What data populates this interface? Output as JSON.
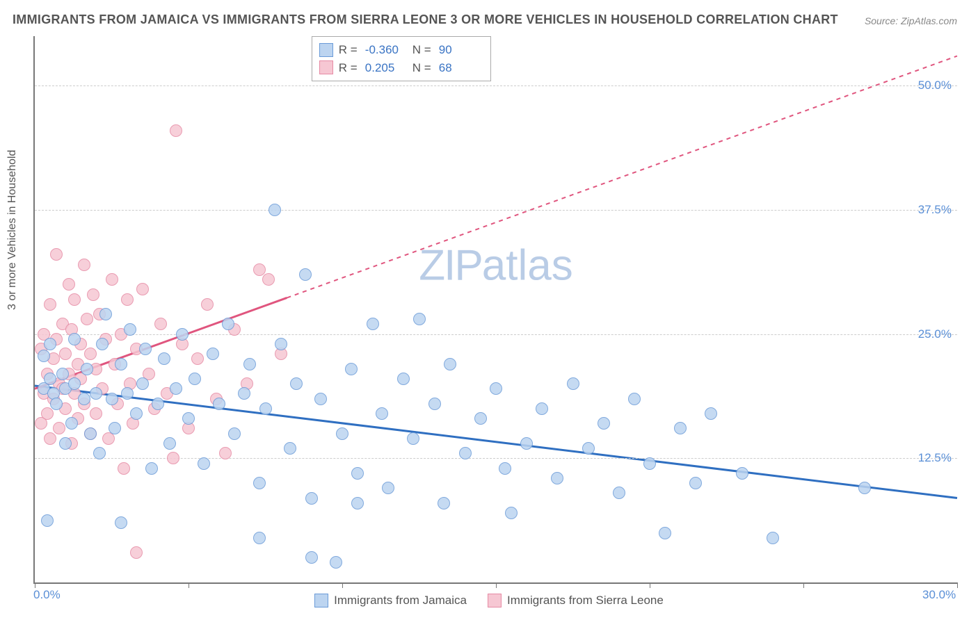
{
  "title": "IMMIGRANTS FROM JAMAICA VS IMMIGRANTS FROM SIERRA LEONE 3 OR MORE VEHICLES IN HOUSEHOLD CORRELATION CHART",
  "source_label": "Source:",
  "source_value": "ZipAtlas.com",
  "y_axis_label": "3 or more Vehicles in Household",
  "watermark_part1": "ZIP",
  "watermark_part2": "atlas",
  "watermark_color": "#b9cce6",
  "plot": {
    "xmin": 0.0,
    "xmax": 30.0,
    "ymin": 0.0,
    "ymax": 55.0,
    "x_tick_step": 5.0,
    "y_gridlines": [
      12.5,
      25.0,
      37.5,
      50.0
    ],
    "y_tick_labels": [
      "12.5%",
      "25.0%",
      "37.5%",
      "50.0%"
    ],
    "x_min_label": "0.0%",
    "x_max_label": "30.0%",
    "grid_color": "#cccccc",
    "axis_color": "#777777",
    "background": "#ffffff"
  },
  "series": {
    "jamaica": {
      "label": "Immigrants from Jamaica",
      "point_fill": "#bcd4f0",
      "point_stroke": "#6a9bd8",
      "point_radius": 9,
      "trend_color": "#2f6fc1",
      "trend_width": 3,
      "trend_start": {
        "x": 0.0,
        "y": 19.8
      },
      "trend_end": {
        "x": 30.0,
        "y": 8.5
      },
      "R": "-0.360",
      "N": "90",
      "points": [
        [
          0.3,
          22.8
        ],
        [
          0.3,
          19.5
        ],
        [
          0.4,
          6.2
        ],
        [
          0.5,
          24.0
        ],
        [
          0.5,
          20.5
        ],
        [
          0.6,
          19.0
        ],
        [
          0.7,
          18.0
        ],
        [
          0.9,
          21.0
        ],
        [
          1.0,
          14.0
        ],
        [
          1.0,
          19.5
        ],
        [
          1.2,
          16.0
        ],
        [
          1.3,
          24.5
        ],
        [
          1.3,
          20.0
        ],
        [
          2.8,
          6.0
        ],
        [
          1.6,
          18.5
        ],
        [
          1.7,
          21.5
        ],
        [
          1.8,
          15.0
        ],
        [
          2.0,
          19.0
        ],
        [
          2.1,
          13.0
        ],
        [
          2.2,
          24.0
        ],
        [
          2.3,
          27.0
        ],
        [
          2.5,
          18.5
        ],
        [
          2.6,
          15.5
        ],
        [
          2.8,
          22.0
        ],
        [
          3.0,
          19.0
        ],
        [
          3.1,
          25.5
        ],
        [
          3.3,
          17.0
        ],
        [
          3.5,
          20.0
        ],
        [
          3.6,
          23.5
        ],
        [
          3.8,
          11.5
        ],
        [
          4.0,
          18.0
        ],
        [
          4.2,
          22.5
        ],
        [
          4.4,
          14.0
        ],
        [
          4.6,
          19.5
        ],
        [
          4.8,
          25.0
        ],
        [
          5.0,
          16.5
        ],
        [
          5.2,
          20.5
        ],
        [
          5.5,
          12.0
        ],
        [
          5.8,
          23.0
        ],
        [
          6.0,
          18.0
        ],
        [
          6.3,
          26.0
        ],
        [
          6.5,
          15.0
        ],
        [
          6.8,
          19.0
        ],
        [
          7.0,
          22.0
        ],
        [
          7.3,
          10.0
        ],
        [
          7.3,
          4.5
        ],
        [
          7.5,
          17.5
        ],
        [
          7.8,
          37.5
        ],
        [
          8.0,
          24.0
        ],
        [
          8.3,
          13.5
        ],
        [
          8.5,
          20.0
        ],
        [
          8.8,
          31.0
        ],
        [
          9.0,
          8.5
        ],
        [
          9.3,
          18.5
        ],
        [
          9.0,
          2.5
        ],
        [
          9.8,
          2.0
        ],
        [
          10.5,
          8.0
        ],
        [
          10.0,
          15.0
        ],
        [
          10.3,
          21.5
        ],
        [
          10.5,
          11.0
        ],
        [
          11.0,
          26.0
        ],
        [
          11.3,
          17.0
        ],
        [
          11.5,
          9.5
        ],
        [
          12.0,
          20.5
        ],
        [
          12.3,
          14.5
        ],
        [
          12.5,
          26.5
        ],
        [
          13.0,
          18.0
        ],
        [
          13.3,
          8.0
        ],
        [
          13.5,
          22.0
        ],
        [
          14.0,
          13.0
        ],
        [
          14.5,
          16.5
        ],
        [
          15.0,
          19.5
        ],
        [
          15.3,
          11.5
        ],
        [
          15.5,
          7.0
        ],
        [
          16.0,
          14.0
        ],
        [
          16.5,
          17.5
        ],
        [
          17.0,
          10.5
        ],
        [
          17.5,
          20.0
        ],
        [
          18.0,
          13.5
        ],
        [
          18.5,
          16.0
        ],
        [
          19.0,
          9.0
        ],
        [
          19.5,
          18.5
        ],
        [
          20.0,
          12.0
        ],
        [
          20.5,
          5.0
        ],
        [
          21.0,
          15.5
        ],
        [
          21.5,
          10.0
        ],
        [
          22.0,
          17.0
        ],
        [
          23.0,
          11.0
        ],
        [
          24.0,
          4.5
        ],
        [
          27.0,
          9.5
        ]
      ]
    },
    "sierra_leone": {
      "label": "Immigrants from Sierra Leone",
      "point_fill": "#f6c7d3",
      "point_stroke": "#e68aa4",
      "point_radius": 9,
      "trend_color": "#e0557e",
      "trend_width": 3,
      "trend_solid_end_x": 8.2,
      "trend_start": {
        "x": 0.0,
        "y": 19.5
      },
      "trend_end": {
        "x": 30.0,
        "y": 53.0
      },
      "R": "0.205",
      "N": "68",
      "points": [
        [
          0.2,
          23.5
        ],
        [
          0.2,
          16.0
        ],
        [
          0.3,
          25.0
        ],
        [
          0.3,
          19.0
        ],
        [
          0.4,
          21.0
        ],
        [
          0.4,
          17.0
        ],
        [
          0.5,
          28.0
        ],
        [
          0.5,
          14.5
        ],
        [
          0.6,
          22.5
        ],
        [
          0.6,
          18.5
        ],
        [
          0.7,
          24.5
        ],
        [
          0.7,
          33.0
        ],
        [
          0.8,
          20.0
        ],
        [
          0.8,
          15.5
        ],
        [
          0.9,
          26.0
        ],
        [
          0.9,
          19.5
        ],
        [
          1.0,
          23.0
        ],
        [
          1.0,
          17.5
        ],
        [
          1.1,
          30.0
        ],
        [
          1.1,
          21.0
        ],
        [
          1.2,
          25.5
        ],
        [
          1.2,
          14.0
        ],
        [
          1.3,
          28.5
        ],
        [
          1.3,
          19.0
        ],
        [
          1.4,
          22.0
        ],
        [
          1.4,
          16.5
        ],
        [
          1.5,
          24.0
        ],
        [
          1.5,
          20.5
        ],
        [
          1.6,
          32.0
        ],
        [
          1.6,
          18.0
        ],
        [
          1.7,
          26.5
        ],
        [
          1.8,
          23.0
        ],
        [
          1.8,
          15.0
        ],
        [
          1.9,
          29.0
        ],
        [
          2.0,
          21.5
        ],
        [
          2.0,
          17.0
        ],
        [
          2.1,
          27.0
        ],
        [
          2.2,
          19.5
        ],
        [
          2.3,
          24.5
        ],
        [
          2.4,
          14.5
        ],
        [
          2.5,
          30.5
        ],
        [
          2.6,
          22.0
        ],
        [
          2.7,
          18.0
        ],
        [
          2.8,
          25.0
        ],
        [
          2.9,
          11.5
        ],
        [
          3.0,
          28.5
        ],
        [
          3.1,
          20.0
        ],
        [
          3.2,
          16.0
        ],
        [
          3.3,
          23.5
        ],
        [
          3.5,
          29.5
        ],
        [
          3.3,
          3.0
        ],
        [
          3.7,
          21.0
        ],
        [
          3.9,
          17.5
        ],
        [
          4.1,
          26.0
        ],
        [
          4.3,
          19.0
        ],
        [
          4.5,
          12.5
        ],
        [
          4.6,
          45.5
        ],
        [
          4.8,
          24.0
        ],
        [
          5.0,
          15.5
        ],
        [
          5.3,
          22.5
        ],
        [
          5.6,
          28.0
        ],
        [
          5.9,
          18.5
        ],
        [
          6.2,
          13.0
        ],
        [
          6.5,
          25.5
        ],
        [
          6.9,
          20.0
        ],
        [
          7.3,
          31.5
        ],
        [
          7.6,
          30.5
        ],
        [
          8.0,
          23.0
        ]
      ]
    }
  },
  "stats_box": {
    "rows": [
      {
        "swatch_fill": "#bcd4f0",
        "swatch_stroke": "#6a9bd8",
        "R_label": "R =",
        "R": "-0.360",
        "N_label": "N =",
        "N": "90"
      },
      {
        "swatch_fill": "#f6c7d3",
        "swatch_stroke": "#e68aa4",
        "R_label": "R =",
        "R": "0.205",
        "N_label": "N =",
        "N": "68"
      }
    ]
  },
  "legend": [
    {
      "swatch_fill": "#bcd4f0",
      "swatch_stroke": "#6a9bd8",
      "label": "Immigrants from Jamaica"
    },
    {
      "swatch_fill": "#f6c7d3",
      "swatch_stroke": "#e68aa4",
      "label": "Immigrants from Sierra Leone"
    }
  ]
}
